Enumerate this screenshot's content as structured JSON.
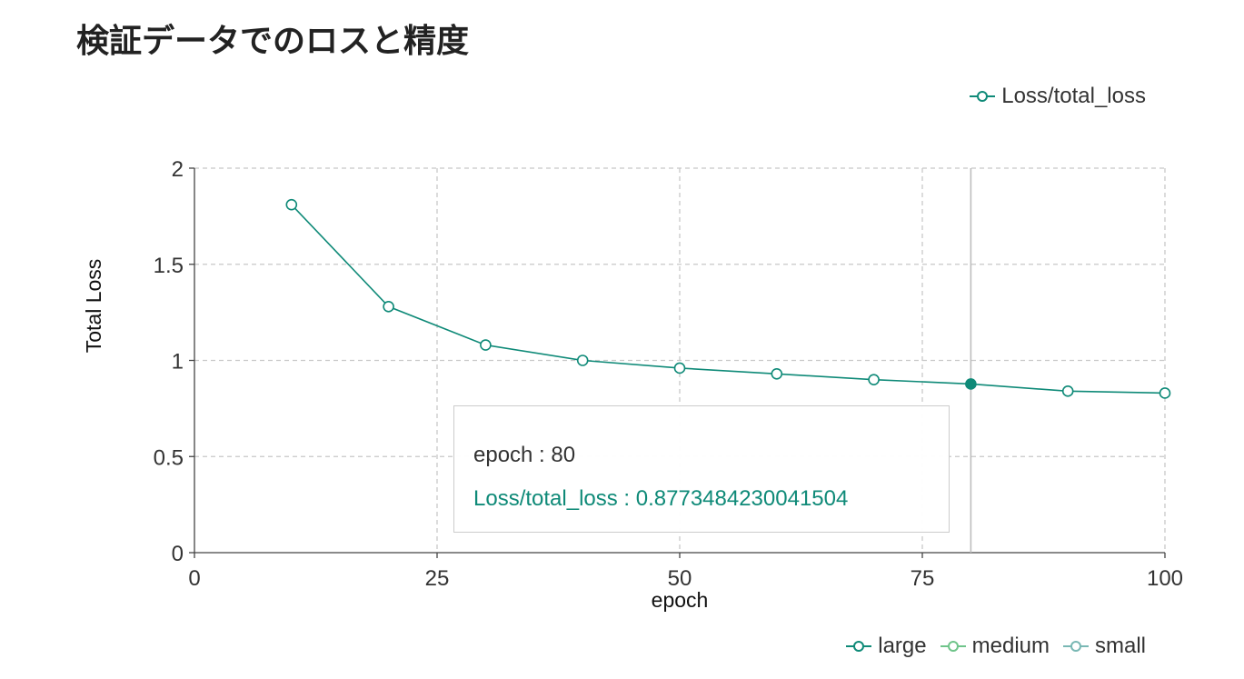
{
  "page": {
    "title": "検証データでのロスと精度"
  },
  "chart_data": {
    "type": "line",
    "xlabel": "epoch",
    "ylabel": "Total Loss",
    "xlim": [
      0,
      100
    ],
    "ylim": [
      0,
      2
    ],
    "x_ticks": [
      0,
      25,
      50,
      75,
      100
    ],
    "y_ticks": [
      0,
      0.5,
      1,
      1.5,
      2
    ],
    "x_tick_labels": [
      "0",
      "25",
      "50",
      "75",
      "100"
    ],
    "y_tick_labels": [
      "0",
      "0.5",
      "1",
      "1.5",
      "2"
    ],
    "grid": true,
    "legend_position": "top-right",
    "series": [
      {
        "name": "Loss/total_loss",
        "color": "#0f8a78",
        "x": [
          10,
          20,
          30,
          40,
          50,
          60,
          70,
          80,
          90,
          100
        ],
        "y": [
          1.81,
          1.28,
          1.08,
          1.0,
          0.96,
          0.93,
          0.9,
          0.8773484230041504,
          0.84,
          0.83
        ]
      }
    ],
    "hover": {
      "x": 80,
      "epoch_label": "epoch : 80",
      "value_label": "Loss/total_loss : 0.8773484230041504"
    }
  },
  "run_legend": [
    {
      "label": "large",
      "color": "#0f8a78"
    },
    {
      "label": "medium",
      "color": "#6fc48a"
    },
    {
      "label": "small",
      "color": "#79b8b4"
    }
  ]
}
